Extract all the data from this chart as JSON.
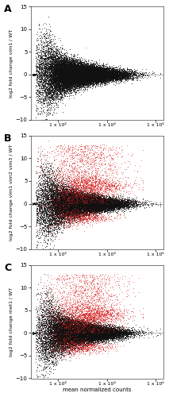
{
  "panels": [
    {
      "label": "A",
      "ylabel": "log2 fold change vim1 / WT",
      "n_black": 28000,
      "n_red": 2,
      "upper_bias": 0.0
    },
    {
      "label": "B",
      "ylabel": "log2 fold change vim1 vim2 vim3 / WT",
      "n_black": 23000,
      "n_red": 3500,
      "upper_bias": 4.0
    },
    {
      "label": "C",
      "ylabel": "log2 fold change met1 / WT",
      "n_black": 23000,
      "n_red": 3500,
      "upper_bias": 4.0
    }
  ],
  "xlabel": "mean normalized counts",
  "ylim": [
    -10,
    15
  ],
  "yticks": [
    -10,
    -5,
    0,
    5,
    10,
    15
  ],
  "xtick_positions": [
    100,
    10000,
    1000000
  ],
  "xtick_labels": [
    "1 x 10²",
    "1 x 10⁴",
    "1 x 10⁶"
  ],
  "black_color": "#111111",
  "red_color": "#dd2222",
  "gray_line_color": "#aaaaaa",
  "background_color": "#ffffff",
  "marker_size": 0.5,
  "marker_alpha": 0.6,
  "figsize": [
    2.13,
    5.0
  ],
  "dpi": 100
}
